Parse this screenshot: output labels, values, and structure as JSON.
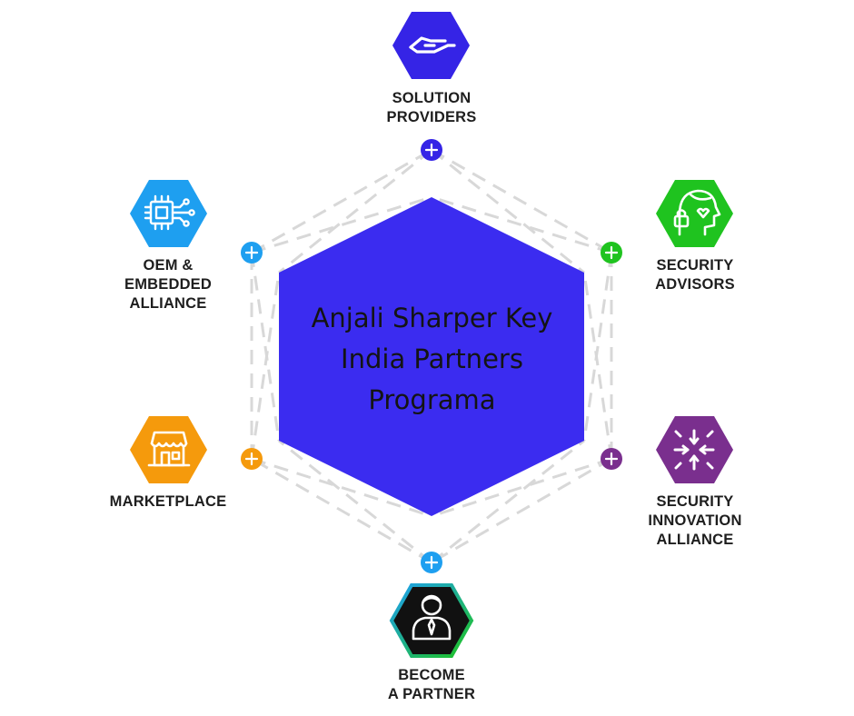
{
  "center": {
    "title": "Anjali Sharper Key\nIndia Partners\nPrograma",
    "color": "#3b2cf0"
  },
  "nodes": [
    {
      "id": "solution-providers",
      "label": "SOLUTION\nPROVIDERS",
      "color": "#3524e6",
      "icon": "handshake-icon"
    },
    {
      "id": "security-advisors",
      "label": "SECURITY\nADVISORS",
      "color": "#1fc31f",
      "icon": "advisor-head-lock-icon"
    },
    {
      "id": "security-innovation-alliance",
      "label": "SECURITY\nINNOVATION\nALLIANCE",
      "color": "#7a2f8e",
      "icon": "sparkle-arrows-icon"
    },
    {
      "id": "become-a-partner",
      "label": "BECOME\nA PARTNER",
      "color": "#111111",
      "icon": "person-icon"
    },
    {
      "id": "marketplace",
      "label": "MARKETPLACE",
      "color": "#f59a0c",
      "icon": "storefront-icon"
    },
    {
      "id": "oem-embedded-alliance",
      "label": "OEM &\nEMBEDDED\nALLIANCE",
      "color": "#1e9ff0",
      "icon": "chip-icon"
    }
  ],
  "plus_markers": [
    {
      "id": "top",
      "color": "#3524e6"
    },
    {
      "id": "top-right",
      "color": "#1fc31f"
    },
    {
      "id": "bottom-right",
      "color": "#7a2f8e"
    },
    {
      "id": "bottom",
      "color": "#1e9ff0"
    },
    {
      "id": "bottom-left",
      "color": "#f59a0c"
    },
    {
      "id": "top-left",
      "color": "#1e9ff0"
    }
  ],
  "connector_color": "#d8d8d8"
}
